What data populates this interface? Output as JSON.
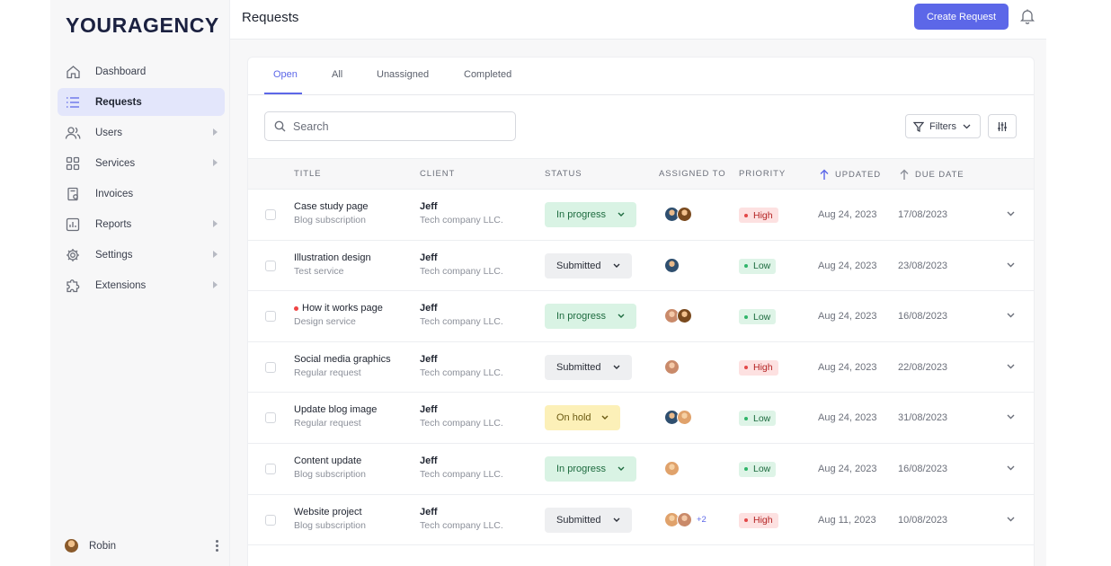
{
  "brand": {
    "logo_text": "YOURAGENCY",
    "accent": "#5c67e8"
  },
  "sidebar": {
    "items": [
      {
        "label": "Dashboard",
        "icon": "home-icon",
        "active": false,
        "has_submenu": false
      },
      {
        "label": "Requests",
        "icon": "list-icon",
        "active": true,
        "has_submenu": false
      },
      {
        "label": "Users",
        "icon": "users-icon",
        "active": false,
        "has_submenu": true
      },
      {
        "label": "Services",
        "icon": "grid-icon",
        "active": false,
        "has_submenu": true
      },
      {
        "label": "Invoices",
        "icon": "invoice-icon",
        "active": false,
        "has_submenu": false
      },
      {
        "label": "Reports",
        "icon": "chart-icon",
        "active": false,
        "has_submenu": true
      },
      {
        "label": "Settings",
        "icon": "gear-icon",
        "active": false,
        "has_submenu": true
      },
      {
        "label": "Extensions",
        "icon": "puzzle-icon",
        "active": false,
        "has_submenu": true
      }
    ],
    "user": {
      "name": "Robin"
    }
  },
  "header": {
    "title": "Requests",
    "create_label": "Create Request",
    "bell_icon": "bell-icon"
  },
  "tabs": [
    {
      "label": "Open",
      "active": true
    },
    {
      "label": "All",
      "active": false
    },
    {
      "label": "Unassigned",
      "active": false
    },
    {
      "label": "Completed",
      "active": false
    }
  ],
  "toolbar": {
    "search_placeholder": "Search",
    "filters_label": "Filters"
  },
  "columns": {
    "title": "TITLE",
    "client": "CLIENT",
    "status": "STATUS",
    "assigned": "ASSIGNED TO",
    "priority": "PRIORITY",
    "updated": "UPDATED",
    "due": "DUE DATE"
  },
  "rows": [
    {
      "title": "Case study page",
      "subtitle": "Blog subscription",
      "client": "Jeff",
      "company": "Tech company LLC.",
      "status": "In progress",
      "status_kind": "inprog",
      "assignees": [
        "a1",
        "a2"
      ],
      "more": "",
      "priority": "High",
      "priority_kind": "high",
      "updated": "Aug 24, 2023",
      "due": "17/08/2023",
      "flag": false
    },
    {
      "title": "Illustration design",
      "subtitle": "Test service",
      "client": "Jeff",
      "company": "Tech company LLC.",
      "status": "Submitted",
      "status_kind": "submitted",
      "assignees": [
        "a1"
      ],
      "more": "",
      "priority": "Low",
      "priority_kind": "low",
      "updated": "Aug 24, 2023",
      "due": "23/08/2023",
      "flag": false
    },
    {
      "title": "How it works page",
      "subtitle": "Design service",
      "client": "Jeff",
      "company": "Tech company LLC.",
      "status": "In progress",
      "status_kind": "inprog",
      "assignees": [
        "a3",
        "a2"
      ],
      "more": "",
      "priority": "Low",
      "priority_kind": "low",
      "updated": "Aug 24, 2023",
      "due": "16/08/2023",
      "flag": true
    },
    {
      "title": "Social media graphics",
      "subtitle": "Regular request",
      "client": "Jeff",
      "company": "Tech company LLC.",
      "status": "Submitted",
      "status_kind": "submitted",
      "assignees": [
        "a3"
      ],
      "more": "",
      "priority": "High",
      "priority_kind": "high",
      "updated": "Aug 24, 2023",
      "due": "22/08/2023",
      "flag": false
    },
    {
      "title": "Update blog image",
      "subtitle": "Regular request",
      "client": "Jeff",
      "company": "Tech company LLC.",
      "status": "On hold",
      "status_kind": "onhold",
      "assignees": [
        "a1",
        "a4"
      ],
      "more": "",
      "priority": "Low",
      "priority_kind": "low",
      "updated": "Aug 24, 2023",
      "due": "31/08/2023",
      "flag": false
    },
    {
      "title": "Content update",
      "subtitle": "Blog subscription",
      "client": "Jeff",
      "company": "Tech company LLC.",
      "status": "In progress",
      "status_kind": "inprog",
      "assignees": [
        "a4"
      ],
      "more": "",
      "priority": "Low",
      "priority_kind": "low",
      "updated": "Aug 24, 2023",
      "due": "16/08/2023",
      "flag": false
    },
    {
      "title": "Website project",
      "subtitle": "Blog subscription",
      "client": "Jeff",
      "company": "Tech company LLC.",
      "status": "Submitted",
      "status_kind": "submitted",
      "assignees": [
        "a4",
        "a3"
      ],
      "more": "+2",
      "priority": "High",
      "priority_kind": "high",
      "updated": "Aug 11, 2023",
      "due": "10/08/2023",
      "flag": false
    }
  ]
}
